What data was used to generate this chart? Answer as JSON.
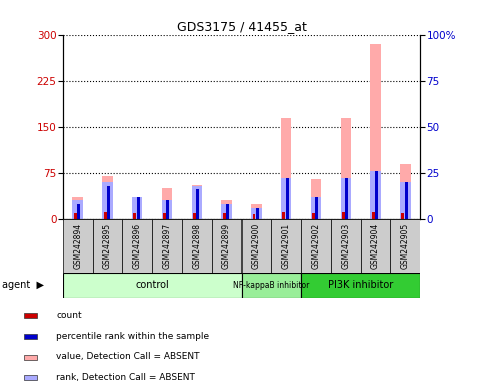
{
  "title": "GDS3175 / 41455_at",
  "samples": [
    "GSM242894",
    "GSM242895",
    "GSM242896",
    "GSM242897",
    "GSM242898",
    "GSM242899",
    "GSM242900",
    "GSM242901",
    "GSM242902",
    "GSM242903",
    "GSM242904",
    "GSM242905"
  ],
  "count": [
    10,
    12,
    10,
    10,
    10,
    9,
    8,
    12,
    10,
    12,
    12,
    10
  ],
  "percentile_rank": [
    8,
    18,
    12,
    10,
    16,
    8,
    6,
    22,
    12,
    22,
    26,
    20
  ],
  "value_absent": [
    35,
    70,
    35,
    50,
    55,
    30,
    25,
    165,
    65,
    165,
    285,
    90
  ],
  "rank_absent": [
    10,
    20,
    12,
    10,
    18,
    8,
    6,
    22,
    12,
    22,
    26,
    20
  ],
  "groups": [
    {
      "label": "control",
      "start": 0,
      "end": 6,
      "color": "#ccffcc"
    },
    {
      "label": "NF-kappaB inhibitor",
      "start": 6,
      "end": 8,
      "color": "#99ee99"
    },
    {
      "label": "PI3K inhibitor",
      "start": 8,
      "end": 12,
      "color": "#33cc33"
    }
  ],
  "ylim_left": [
    0,
    300
  ],
  "ylim_right": [
    0,
    100
  ],
  "yticks_left": [
    0,
    75,
    150,
    225,
    300
  ],
  "yticks_right": [
    0,
    25,
    50,
    75,
    100
  ],
  "color_count": "#cc0000",
  "color_rank": "#0000cc",
  "color_value_absent": "#ffaaaa",
  "color_rank_absent": "#aaaaff",
  "bg_color": "#cccccc",
  "plot_bg": "#ffffff",
  "legend_items": [
    "count",
    "percentile rank within the sample",
    "value, Detection Call = ABSENT",
    "rank, Detection Call = ABSENT"
  ],
  "legend_colors": [
    "#cc0000",
    "#0000cc",
    "#ffaaaa",
    "#aaaaff"
  ]
}
